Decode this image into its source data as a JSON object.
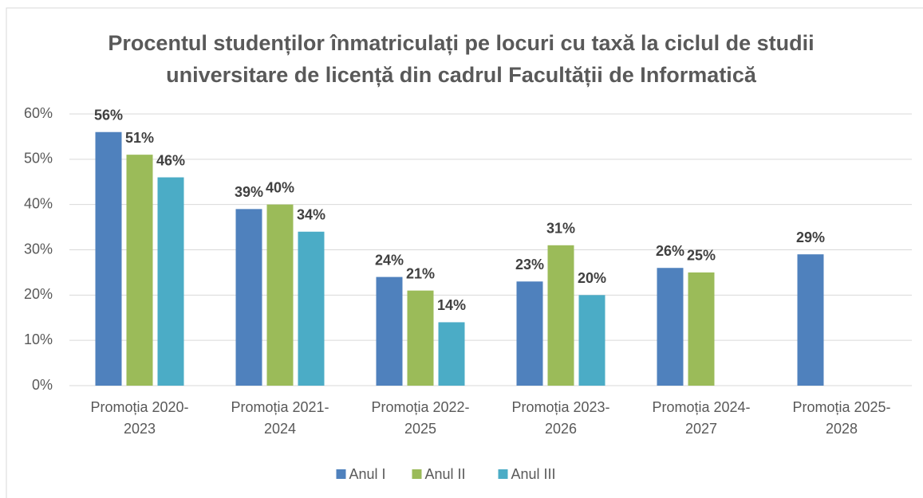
{
  "chart_data": {
    "type": "bar",
    "title": "Procentul studenților înmatriculați pe locuri cu taxă la ciclul de studii universitare de licență din cadrul Facultății de Informatică",
    "categories": [
      "Promoția 2020-2023",
      "Promoția 2021-2024",
      "Promoția 2022-2025",
      "Promoția 2023-2026",
      "Promoția 2024-2027",
      "Promoția 2025-2028"
    ],
    "series": [
      {
        "name": "Anul I",
        "color": "#4f81bd",
        "values": [
          56,
          39,
          24,
          23,
          26,
          29
        ],
        "value_labels": [
          "56%",
          "39%",
          "24%",
          "23%",
          "26%",
          "29%"
        ]
      },
      {
        "name": "Anul II",
        "color": "#9bbb59",
        "values": [
          51,
          40,
          21,
          31,
          25,
          null
        ],
        "value_labels": [
          "51%",
          "40%",
          "21%",
          "31%",
          "25%",
          null
        ]
      },
      {
        "name": "Anul III",
        "color": "#4bacc6",
        "values": [
          46,
          34,
          14,
          20,
          null,
          null
        ],
        "value_labels": [
          "46%",
          "34%",
          "14%",
          "20%",
          null,
          null
        ]
      }
    ],
    "ylim": [
      0,
      60
    ],
    "yticks": [
      {
        "value": 0,
        "label": "0%"
      },
      {
        "value": 10,
        "label": "10%"
      },
      {
        "value": 20,
        "label": "20%"
      },
      {
        "value": 30,
        "label": "30%"
      },
      {
        "value": 40,
        "label": "40%"
      },
      {
        "value": 50,
        "label": "50%"
      },
      {
        "value": 60,
        "label": "60%"
      }
    ],
    "grid": true,
    "legend": "bottom"
  }
}
